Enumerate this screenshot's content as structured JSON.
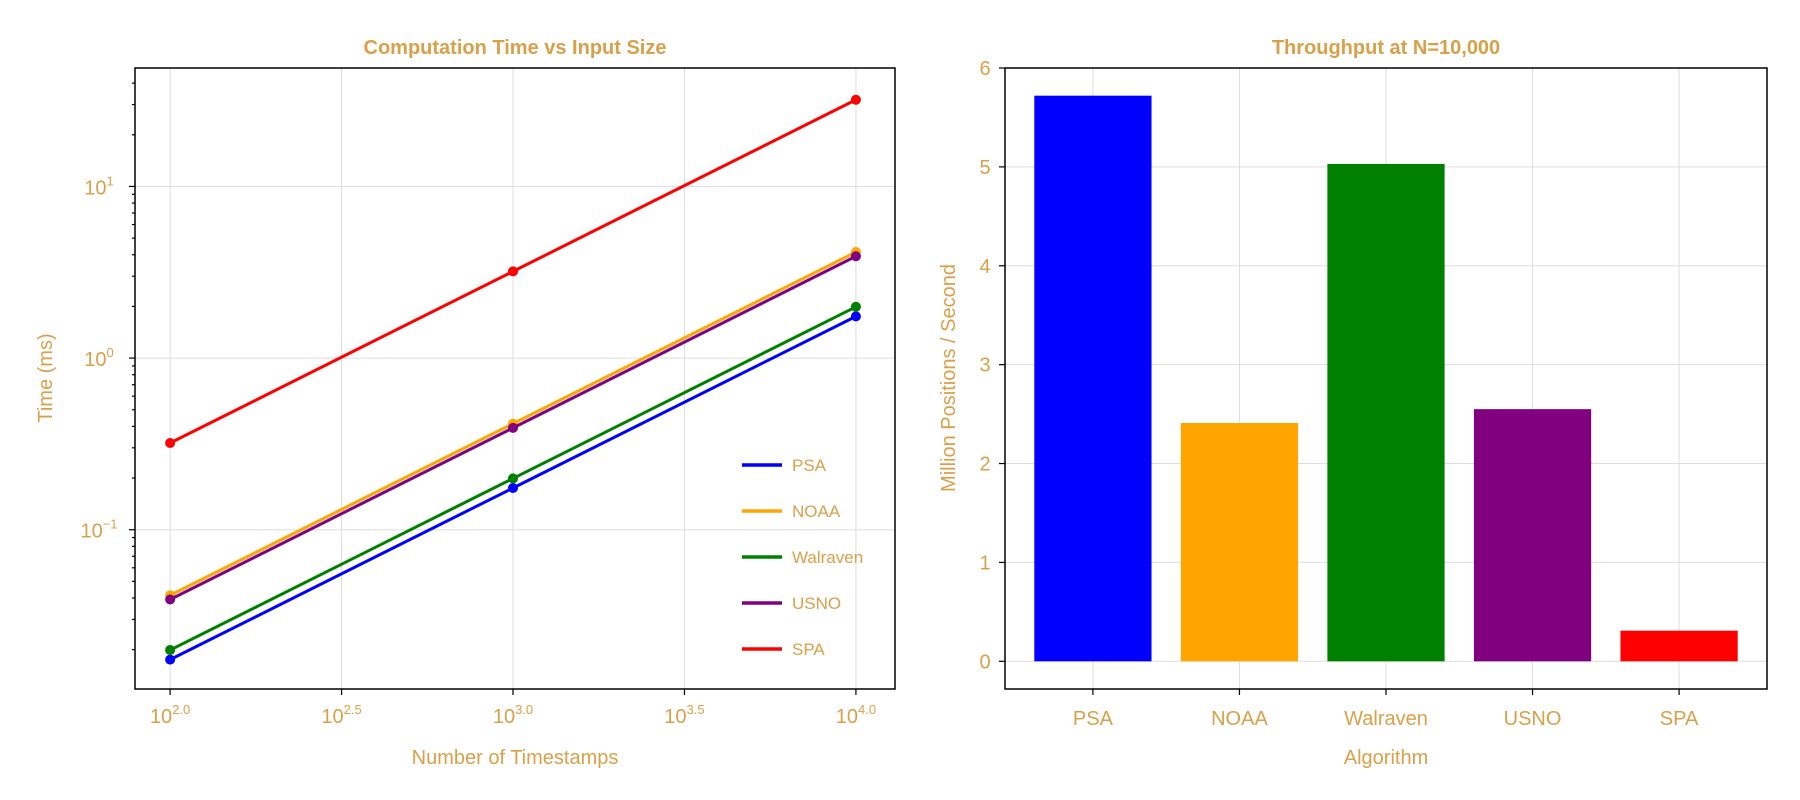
{
  "text_color": "#D9A04A",
  "chart_data": [
    {
      "type": "line",
      "title": "Computation Time vs Input Size",
      "xlabel": "Number of Timestamps",
      "ylabel": "Time (ms)",
      "xscale": "log",
      "yscale": "log",
      "x": [
        100,
        1000,
        10000
      ],
      "xlim": [
        79,
        13000
      ],
      "ylim": [
        0.0118,
        49
      ],
      "x_ticks": [
        {
          "base": "10",
          "exp": "2.0",
          "value": 100
        },
        {
          "base": "10",
          "exp": "2.5",
          "value": 316.23
        },
        {
          "base": "10",
          "exp": "3.0",
          "value": 1000
        },
        {
          "base": "10",
          "exp": "3.5",
          "value": 3162.3
        },
        {
          "base": "10",
          "exp": "4.0",
          "value": 10000
        }
      ],
      "y_ticks": [
        {
          "base": "10",
          "exp": "1",
          "value": 10
        },
        {
          "base": "10",
          "exp": "0",
          "value": 1
        },
        {
          "base": "10",
          "exp": "−1",
          "value": 0.1
        }
      ],
      "grid": true,
      "legend_position": "bottom-right",
      "series": [
        {
          "name": "PSA",
          "color": "#0000FF",
          "values": [
            0.0175,
            0.175,
            1.75
          ]
        },
        {
          "name": "NOAA",
          "color": "#FFA500",
          "values": [
            0.0415,
            0.415,
            4.15
          ]
        },
        {
          "name": "Walraven",
          "color": "#008000",
          "values": [
            0.0199,
            0.199,
            1.99
          ]
        },
        {
          "name": "USNO",
          "color": "#800080",
          "values": [
            0.0392,
            0.392,
            3.92
          ]
        },
        {
          "name": "SPA",
          "color": "#FF0000",
          "values": [
            0.32,
            3.2,
            32.0
          ]
        }
      ]
    },
    {
      "type": "bar",
      "title": "Throughput at N=10,000",
      "xlabel": "Algorithm",
      "ylabel": "Million Positions / Second",
      "categories": [
        "PSA",
        "NOAA",
        "Walraven",
        "USNO",
        "SPA"
      ],
      "values": [
        5.72,
        2.41,
        5.03,
        2.55,
        0.31
      ],
      "colors": [
        "#0000FF",
        "#FFA500",
        "#008000",
        "#800080",
        "#FF0000"
      ],
      "ylim": [
        -0.28,
        6.0
      ],
      "y_ticks": [
        "0",
        "1",
        "2",
        "3",
        "4",
        "5",
        "6"
      ],
      "grid": true
    }
  ]
}
